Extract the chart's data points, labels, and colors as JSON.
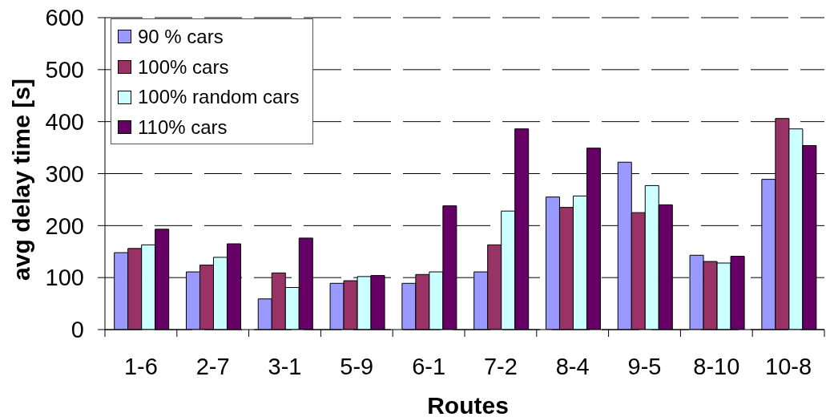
{
  "chart_data": {
    "type": "bar",
    "xlabel": "Routes",
    "ylabel": "avg delay time [s]",
    "categories": [
      "1-6",
      "2-7",
      "3-1",
      "5-9",
      "6-1",
      "7-2",
      "8-4",
      "9-5",
      "8-10",
      "10-8"
    ],
    "series": [
      {
        "name": "90 % cars",
        "color": "#9999ff",
        "values": [
          148,
          111,
          59,
          89,
          89,
          111,
          255,
          322,
          143,
          289
        ]
      },
      {
        "name": "100% cars",
        "color": "#993366",
        "values": [
          156,
          124,
          109,
          94,
          106,
          163,
          235,
          225,
          131,
          406
        ]
      },
      {
        "name": "100% random cars",
        "color": "#ccffff",
        "values": [
          163,
          139,
          81,
          102,
          111,
          228,
          257,
          277,
          128,
          386
        ]
      },
      {
        "name": "110% cars",
        "color": "#660066",
        "values": [
          193,
          165,
          176,
          104,
          238,
          386,
          349,
          240,
          141,
          354
        ]
      }
    ],
    "ylim": [
      0,
      600
    ],
    "yticks": [
      0,
      100,
      200,
      300,
      400,
      500,
      600
    ],
    "grid": "y",
    "legend": "top left"
  }
}
